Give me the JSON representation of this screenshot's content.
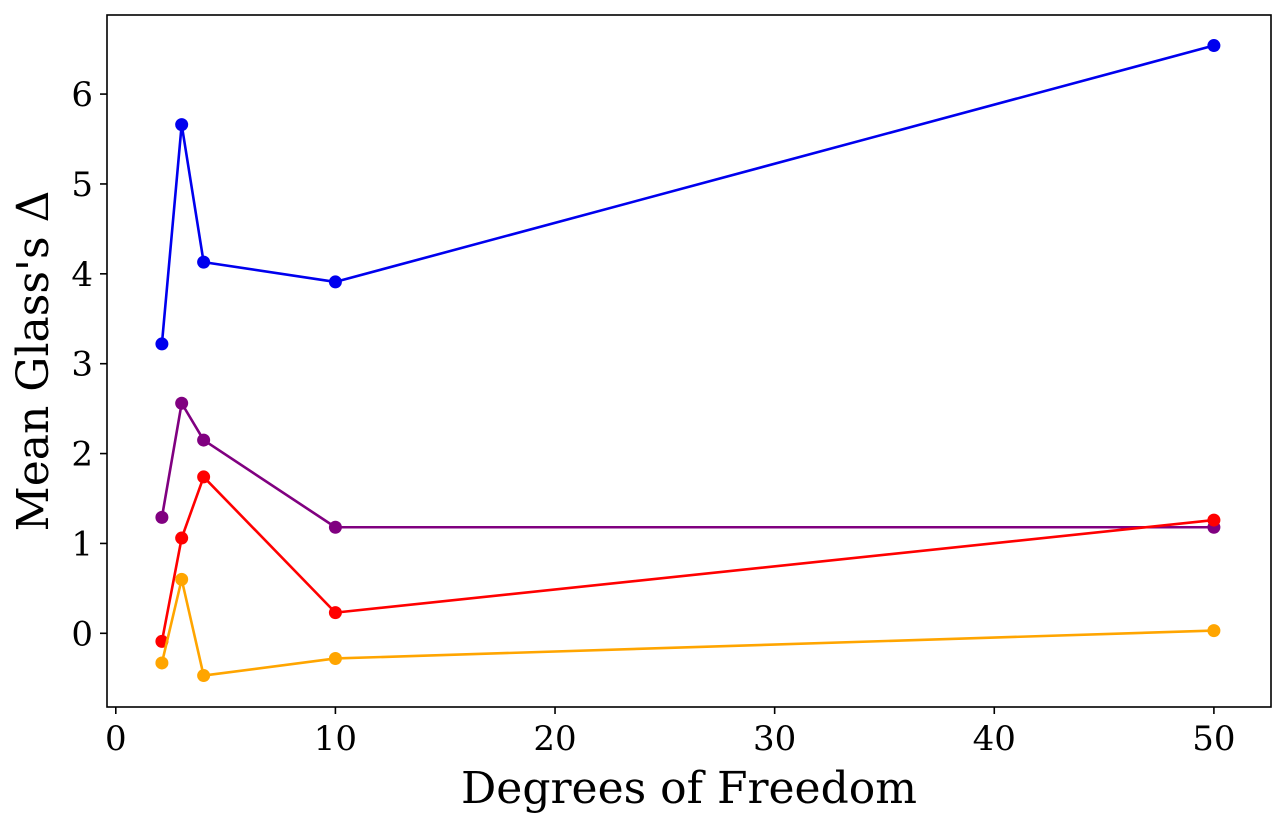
{
  "chart_data": {
    "type": "line",
    "title": "",
    "xlabel": "Degrees of Freedom",
    "ylabel": "Mean Glass's Δ",
    "xlim": [
      -0.4,
      52.6
    ],
    "ylim": [
      -0.82,
      6.88
    ],
    "xticks": [
      0,
      10,
      20,
      30,
      40,
      50
    ],
    "yticks": [
      0,
      1,
      2,
      3,
      4,
      5,
      6
    ],
    "xtick_labels": [
      "0",
      "10",
      "20",
      "30",
      "40",
      "50"
    ],
    "ytick_labels": [
      "0",
      "1",
      "2",
      "3",
      "4",
      "5",
      "6"
    ],
    "grid": false,
    "legend": "none",
    "x": [
      2.1,
      3,
      4,
      10,
      50
    ],
    "series": [
      {
        "color": "#0000ee",
        "values": [
          3.22,
          5.66,
          4.13,
          3.91,
          6.54
        ]
      },
      {
        "color": "#800080",
        "values": [
          1.29,
          2.56,
          2.15,
          1.18,
          1.18
        ]
      },
      {
        "color": "#ff0000",
        "values": [
          -0.09,
          1.06,
          1.74,
          0.23,
          1.26
        ]
      },
      {
        "color": "#ffa500",
        "values": [
          -0.33,
          0.6,
          -0.47,
          -0.28,
          0.03
        ]
      }
    ]
  }
}
